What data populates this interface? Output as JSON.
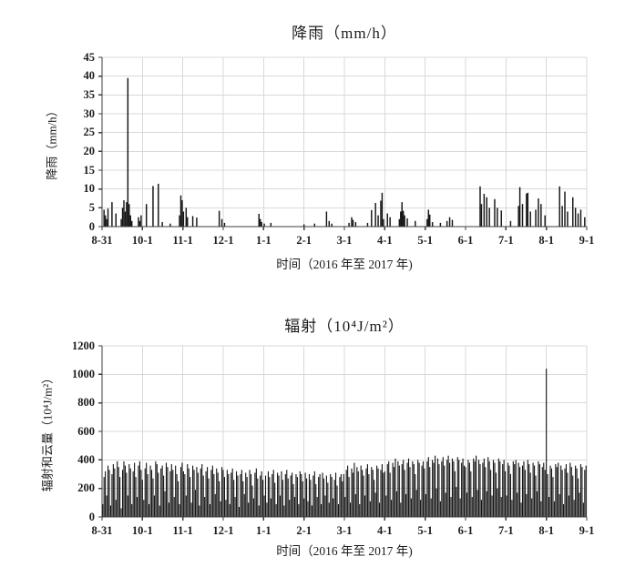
{
  "colors": {
    "bar": "#161616",
    "grid": "#d9d9d9",
    "axis": "#3f3f3f",
    "text": "#1c1c1c",
    "background": "#ffffff"
  },
  "chart_data": [
    {
      "type": "bar",
      "title": "降雨（mm/h）",
      "ylabel": "降雨（mm/h）",
      "xlabel": "时间（2016 年至 2017 年)",
      "ylim": [
        0,
        45
      ],
      "y_ticks": [
        0,
        5,
        10,
        15,
        20,
        25,
        30,
        35,
        40,
        45
      ],
      "x_tick_labels": [
        "8-31",
        "10-1",
        "11-1",
        "12-1",
        "1-1",
        "2-1",
        "3-1",
        "4-1",
        "5-1",
        "6-1",
        "7-1",
        "8-1",
        "9-1"
      ],
      "grid": "on",
      "n_points": 366,
      "points_format": "sparse [day_index_from_8-31, mm_per_h]; unlisted days are 0",
      "points": [
        [
          1,
          4.5
        ],
        [
          2,
          3
        ],
        [
          3,
          2
        ],
        [
          4,
          4.8
        ],
        [
          7,
          6.5
        ],
        [
          10,
          3.5
        ],
        [
          14,
          2
        ],
        [
          15,
          5
        ],
        [
          16,
          7
        ],
        [
          17,
          4
        ],
        [
          18,
          6.5
        ],
        [
          19,
          39.5
        ],
        [
          20,
          6
        ],
        [
          21,
          3
        ],
        [
          22,
          1.5
        ],
        [
          27,
          2.5
        ],
        [
          28,
          1.5
        ],
        [
          29,
          3
        ],
        [
          33,
          6
        ],
        [
          38,
          10.8
        ],
        [
          42,
          11.4
        ],
        [
          45,
          1.2
        ],
        [
          51,
          0.8
        ],
        [
          58,
          3
        ],
        [
          59,
          8.3
        ],
        [
          60,
          7
        ],
        [
          61,
          4
        ],
        [
          63,
          5
        ],
        [
          64,
          2.5
        ],
        [
          68,
          2.8
        ],
        [
          71,
          2.4
        ],
        [
          88,
          4.2
        ],
        [
          90,
          2
        ],
        [
          92,
          1
        ],
        [
          118,
          3.4
        ],
        [
          119,
          2
        ],
        [
          120,
          1.2
        ],
        [
          122,
          0.8
        ],
        [
          127,
          1
        ],
        [
          152,
          0.6
        ],
        [
          160,
          0.8
        ],
        [
          169,
          4
        ],
        [
          171,
          1.5
        ],
        [
          173,
          0.8
        ],
        [
          186,
          1
        ],
        [
          188,
          2.5
        ],
        [
          189,
          1.8
        ],
        [
          191,
          1.2
        ],
        [
          200,
          1
        ],
        [
          203,
          4.4
        ],
        [
          206,
          6.3
        ],
        [
          208,
          3
        ],
        [
          210,
          6.9
        ],
        [
          211,
          9
        ],
        [
          212,
          2
        ],
        [
          215,
          3.5
        ],
        [
          217,
          2.5
        ],
        [
          224,
          2
        ],
        [
          225,
          4
        ],
        [
          226,
          6.5
        ],
        [
          227,
          4.2
        ],
        [
          228,
          3
        ],
        [
          230,
          2.2
        ],
        [
          236,
          1.5
        ],
        [
          245,
          2
        ],
        [
          246,
          4.5
        ],
        [
          247,
          3.2
        ],
        [
          249,
          1.2
        ],
        [
          255,
          1
        ],
        [
          260,
          1.5
        ],
        [
          262,
          2.5
        ],
        [
          264,
          1.8
        ],
        [
          285,
          10.7
        ],
        [
          286,
          6
        ],
        [
          288,
          8.7
        ],
        [
          290,
          7.8
        ],
        [
          292,
          5
        ],
        [
          296,
          7.3
        ],
        [
          298,
          5
        ],
        [
          301,
          4.3
        ],
        [
          308,
          1.5
        ],
        [
          314,
          5.5
        ],
        [
          315,
          10.5
        ],
        [
          317,
          6
        ],
        [
          320,
          8.8
        ],
        [
          321,
          9
        ],
        [
          323,
          4
        ],
        [
          327,
          4.5
        ],
        [
          329,
          7.5
        ],
        [
          331,
          6
        ],
        [
          334,
          3
        ],
        [
          345,
          10.7
        ],
        [
          347,
          5.5
        ],
        [
          349,
          9.3
        ],
        [
          351,
          4
        ],
        [
          355,
          7.8
        ],
        [
          357,
          5
        ],
        [
          359,
          3.5
        ],
        [
          361,
          4.5
        ],
        [
          364,
          2.5
        ]
      ]
    },
    {
      "type": "bar",
      "title": "辐射（10⁴J/m²）",
      "ylabel": "辐射和云量（10⁴J/m²）",
      "xlabel": "时间（2016 年至 2017 年)",
      "ylim": [
        0,
        1200
      ],
      "y_ticks": [
        0,
        200,
        400,
        600,
        800,
        1000,
        1200
      ],
      "x_tick_labels": [
        "8-31",
        "10-1",
        "11-1",
        "12-1",
        "1-1",
        "2-1",
        "3-1",
        "4-1",
        "5-1",
        "6-1",
        "7-1",
        "8-1",
        "9-1"
      ],
      "grid": "on",
      "n_points": 366,
      "peak_annotation": {
        "day": 335,
        "value": 1040,
        "near_tick": "8-1"
      },
      "values": [
        90,
        280,
        320,
        150,
        360,
        330,
        80,
        300,
        370,
        340,
        120,
        390,
        350,
        280,
        60,
        330,
        390,
        360,
        310,
        150,
        370,
        340,
        90,
        320,
        380,
        280,
        140,
        360,
        390,
        330,
        260,
        120,
        340,
        380,
        300,
        90,
        360,
        330,
        270,
        150,
        390,
        370,
        310,
        80,
        340,
        360,
        290,
        180,
        380,
        350,
        100,
        320,
        370,
        330,
        140,
        360,
        300,
        250,
        90,
        350,
        380,
        320,
        300,
        150,
        370,
        340,
        280,
        100,
        360,
        330,
        190,
        350,
        310,
        80,
        340,
        370,
        290,
        140,
        320,
        350,
        270,
        90,
        330,
        360,
        300,
        160,
        340,
        310,
        250,
        110,
        350,
        330,
        280,
        120,
        330,
        300,
        90,
        310,
        340,
        260,
        140,
        320,
        290,
        70,
        300,
        330,
        250,
        160,
        310,
        280,
        100,
        330,
        300,
        220,
        130,
        310,
        340,
        270,
        80,
        290,
        320,
        260,
        150,
        290,
        100,
        320,
        280,
        130,
        300,
        330,
        240,
        90,
        310,
        290,
        150,
        320,
        260,
        80,
        300,
        330,
        270,
        120,
        290,
        310,
        230,
        140,
        300,
        280,
        90,
        320,
        300,
        250,
        130,
        310,
        270,
        110,
        300,
        260,
        80,
        290,
        320,
        230,
        140,
        280,
        300,
        90,
        310,
        270,
        150,
        290,
        240,
        100,
        300,
        280,
        130,
        260,
        310,
        220,
        90,
        280,
        300,
        250,
        300,
        140,
        330,
        360,
        280,
        100,
        340,
        310,
        380,
        160,
        350,
        320,
        90,
        360,
        330,
        290,
        150,
        340,
        370,
        300,
        110,
        350,
        330,
        260,
        170,
        360,
        340,
        100,
        330,
        370,
        310,
        320,
        150,
        370,
        390,
        310,
        120,
        380,
        350,
        410,
        180,
        390,
        360,
        100,
        370,
        400,
        330,
        160,
        380,
        410,
        350,
        130,
        390,
        370,
        300,
        190,
        400,
        380,
        120,
        360,
        390,
        340,
        160,
        390,
        420,
        350,
        130,
        400,
        380,
        430,
        200,
        410,
        370,
        110,
        390,
        420,
        360,
        170,
        400,
        430,
        380,
        140,
        410,
        390,
        320,
        210,
        420,
        400,
        130,
        380,
        410,
        360,
        350,
        170,
        400,
        380,
        320,
        140,
        410,
        390,
        430,
        190,
        400,
        370,
        120,
        380,
        410,
        350,
        180,
        420,
        390,
        330,
        150,
        400,
        380,
        310,
        200,
        410,
        390,
        140,
        370,
        400,
        320,
        150,
        380,
        360,
        300,
        120,
        390,
        370,
        400,
        170,
        380,
        350,
        100,
        360,
        390,
        330,
        160,
        400,
        370,
        310,
        130,
        380,
        360,
        290,
        180,
        390,
        370,
        110,
        350,
        380,
        330,
        1040,
        300,
        140,
        360,
        340,
        280,
        110,
        370,
        350,
        380,
        160,
        360,
        330,
        90,
        340,
        370,
        310,
        150,
        380,
        350,
        290,
        120,
        360,
        340,
        270,
        170,
        370,
        350,
        100,
        330,
        360
      ]
    }
  ]
}
